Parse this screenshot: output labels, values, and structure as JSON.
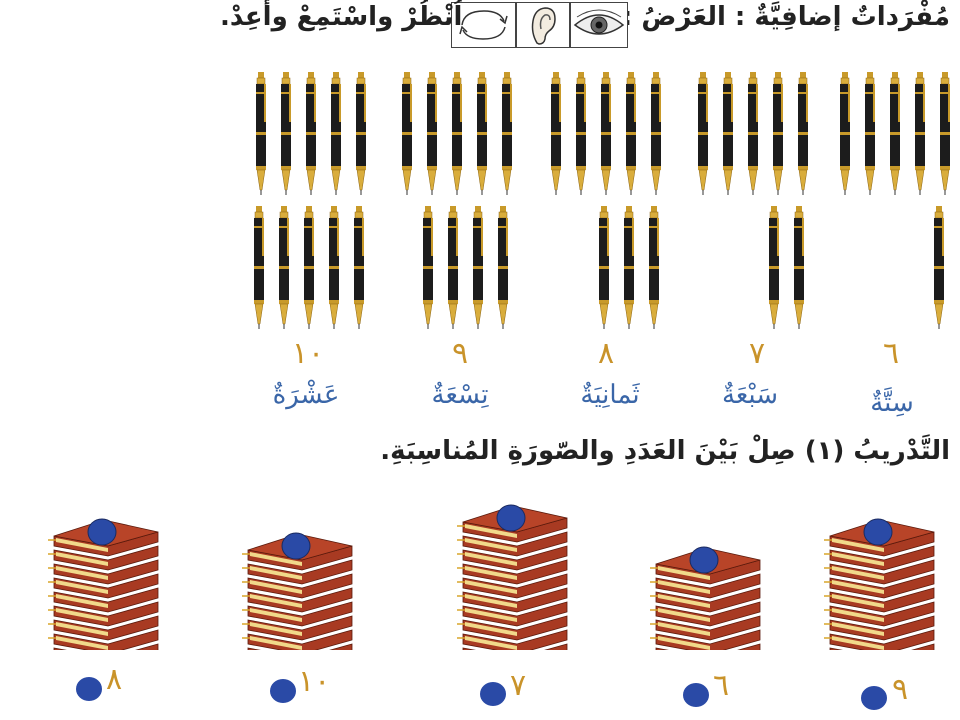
{
  "header": {
    "title": "مُفْرَداتٌ إضافِيَّةٌ : العَرْضُ :",
    "instruction": "اُنْظُرْ واسْتَمِعْ وأَعِدْ."
  },
  "icons": [
    "eye-icon",
    "ear-icon",
    "repeat-arrows-icon"
  ],
  "pen_groups": [
    {
      "number": "٦",
      "word": "سِتَّةٌ",
      "count": 6
    },
    {
      "number": "٧",
      "word": "سَبْعَةٌ",
      "count": 7
    },
    {
      "number": "٨",
      "word": "ثَمانِيَةٌ",
      "count": 8
    },
    {
      "number": "٩",
      "word": "تِسْعَةٌ",
      "count": 9
    },
    {
      "number": "١٠",
      "word": "عَشْرَةٌ",
      "count": 10
    }
  ],
  "exercise": {
    "title": "التَّدْريبُ (١) صِلْ بَيْنَ العَدَدِ والصّورَةِ المُناسِبَةِ."
  },
  "book_stacks": [
    {
      "count": 9
    },
    {
      "count": 7
    },
    {
      "count": 10
    },
    {
      "count": 8
    },
    {
      "count": 9
    }
  ],
  "answer_numbers": [
    "٩",
    "٦",
    "٧",
    "١٠",
    "٨"
  ],
  "colors": {
    "accent_number": "#c9932a",
    "word": "#3a66a8",
    "dot": "#2a4aa6",
    "book": "#b5442a"
  }
}
